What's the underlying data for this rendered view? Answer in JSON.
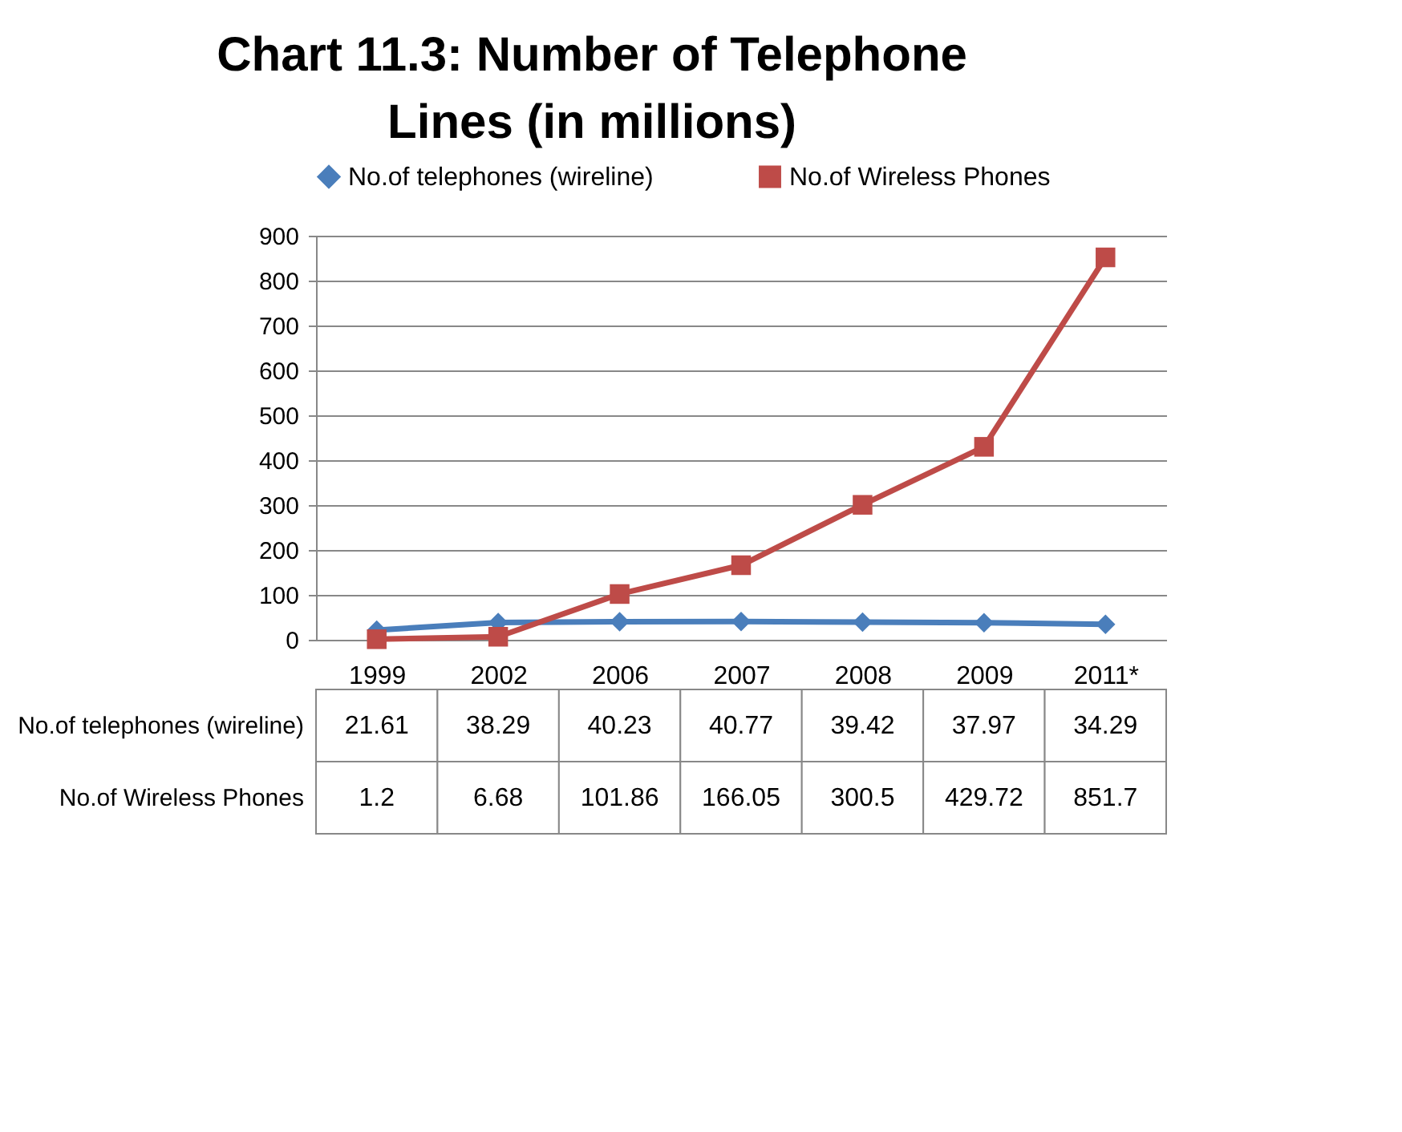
{
  "chart_data": {
    "type": "line",
    "title": "Chart 11.3: Number of Telephone Lines (in millions)",
    "categories": [
      "1999",
      "2002",
      "2006",
      "2007",
      "2008",
      "2009",
      "2011*"
    ],
    "series": [
      {
        "name": "No.of telephones (wireline)",
        "color": "#4a7ebb",
        "marker": "diamond",
        "values": [
          21.61,
          38.29,
          40.23,
          40.77,
          39.42,
          37.97,
          34.29
        ]
      },
      {
        "name": "No.of Wireless Phones",
        "color": "#be4b48",
        "marker": "square",
        "values": [
          1.2,
          6.68,
          101.86,
          166.05,
          300.5,
          429.72,
          851.7
        ]
      }
    ],
    "ylim": [
      0,
      900
    ],
    "yticks": [
      0,
      100,
      200,
      300,
      400,
      500,
      600,
      700,
      800,
      900
    ],
    "grid": "y",
    "legend": "top",
    "line_style": "solid",
    "data_labels": true
  }
}
